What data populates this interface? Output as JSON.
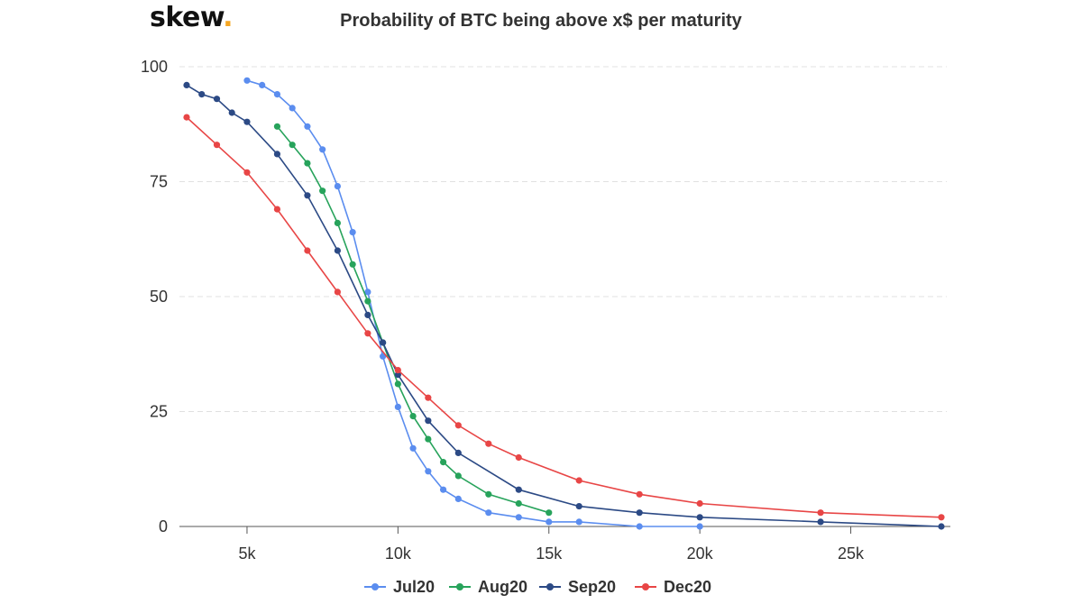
{
  "logo": {
    "text": "skew",
    "dot": "."
  },
  "chart_data": {
    "type": "line",
    "title": "Probability of BTC being above x$ per maturity",
    "xlabel": "",
    "ylabel": "",
    "xlim": [
      3000,
      28000
    ],
    "ylim": [
      0,
      100
    ],
    "x_ticks": [
      5000,
      10000,
      15000,
      20000,
      25000
    ],
    "x_tick_labels": [
      "5k",
      "10k",
      "15k",
      "20k",
      "25k"
    ],
    "y_ticks": [
      0,
      25,
      50,
      75,
      100
    ],
    "y_tick_labels": [
      "0",
      "25",
      "50",
      "75",
      "100"
    ],
    "grid": "horizontal dashed",
    "legend_position": "bottom-center",
    "series": [
      {
        "name": "Jul20",
        "color": "#5b8def",
        "points": [
          [
            5000,
            97
          ],
          [
            5500,
            96
          ],
          [
            6000,
            94
          ],
          [
            6500,
            91
          ],
          [
            7000,
            87
          ],
          [
            7500,
            82
          ],
          [
            8000,
            74
          ],
          [
            8500,
            64
          ],
          [
            9000,
            51
          ],
          [
            9500,
            37
          ],
          [
            10000,
            26
          ],
          [
            10500,
            17
          ],
          [
            11000,
            12
          ],
          [
            11500,
            8
          ],
          [
            12000,
            6
          ],
          [
            13000,
            3
          ],
          [
            14000,
            2
          ],
          [
            15000,
            1
          ],
          [
            16000,
            1
          ],
          [
            18000,
            0
          ],
          [
            20000,
            0
          ]
        ]
      },
      {
        "name": "Aug20",
        "color": "#27a35b",
        "points": [
          [
            6000,
            87
          ],
          [
            6500,
            83
          ],
          [
            7000,
            79
          ],
          [
            7500,
            73
          ],
          [
            8000,
            66
          ],
          [
            8500,
            57
          ],
          [
            9000,
            49
          ],
          [
            9500,
            40
          ],
          [
            10000,
            31
          ],
          [
            10500,
            24
          ],
          [
            11000,
            19
          ],
          [
            11500,
            14
          ],
          [
            12000,
            11
          ],
          [
            13000,
            7
          ],
          [
            14000,
            5
          ],
          [
            15000,
            3
          ]
        ]
      },
      {
        "name": "Sep20",
        "color": "#2c4a85",
        "points": [
          [
            3000,
            96
          ],
          [
            3500,
            94
          ],
          [
            4000,
            93
          ],
          [
            4500,
            90
          ],
          [
            5000,
            88
          ],
          [
            6000,
            81
          ],
          [
            7000,
            72
          ],
          [
            8000,
            60
          ],
          [
            9000,
            46
          ],
          [
            9500,
            40
          ],
          [
            10000,
            33
          ],
          [
            11000,
            23
          ],
          [
            12000,
            16
          ],
          [
            14000,
            8
          ],
          [
            16000,
            4.4
          ],
          [
            18000,
            3
          ],
          [
            20000,
            2
          ],
          [
            24000,
            1
          ],
          [
            28000,
            0
          ]
        ]
      },
      {
        "name": "Dec20",
        "color": "#e84646",
        "points": [
          [
            3000,
            89
          ],
          [
            4000,
            83
          ],
          [
            5000,
            77
          ],
          [
            6000,
            69
          ],
          [
            7000,
            60
          ],
          [
            8000,
            51
          ],
          [
            9000,
            42
          ],
          [
            10000,
            34
          ],
          [
            11000,
            28
          ],
          [
            12000,
            22
          ],
          [
            13000,
            18
          ],
          [
            14000,
            15
          ],
          [
            16000,
            10
          ],
          [
            18000,
            7
          ],
          [
            20000,
            5
          ],
          [
            24000,
            3
          ],
          [
            28000,
            2
          ]
        ]
      }
    ]
  }
}
